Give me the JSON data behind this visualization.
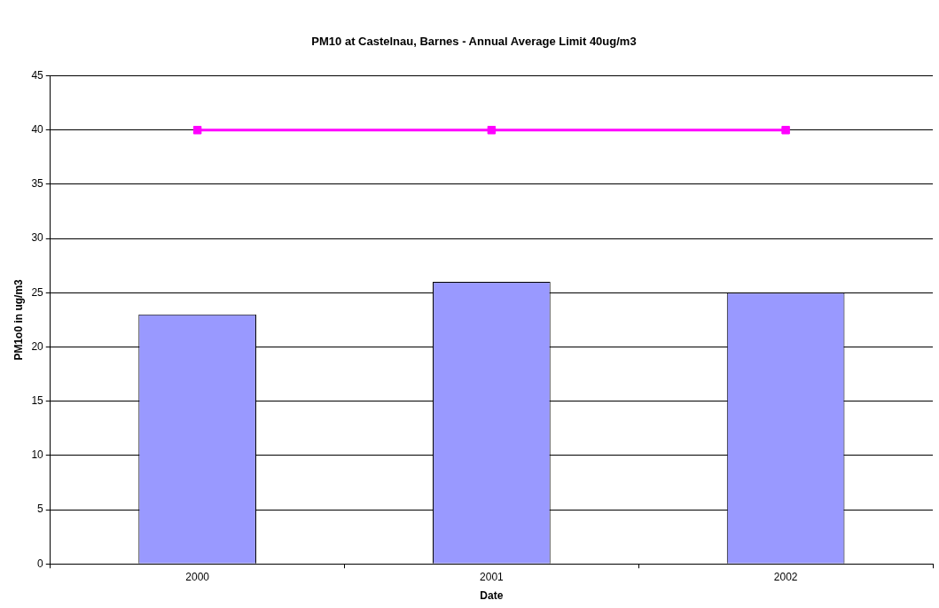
{
  "chart_data": {
    "type": "bar",
    "title": "PM10 at Castelnau, Barnes - Annual Average Limit 40ug/m3",
    "xlabel": "Date",
    "ylabel": "PM1o0 in ug/m3",
    "categories": [
      "2000",
      "2001",
      "2002"
    ],
    "series": [
      {
        "color": "#9999ff",
        "values": [
          23,
          26,
          25
        ]
      },
      {
        "type": "line",
        "color": "#ff00ff",
        "values": [
          40,
          40,
          40
        ],
        "marker": "square",
        "line_style": "solid"
      }
    ],
    "ylim": [
      0,
      45
    ],
    "yticks": [
      0,
      5,
      10,
      15,
      20,
      25,
      30,
      35,
      40,
      45
    ],
    "grid": "y",
    "legend": false
  }
}
